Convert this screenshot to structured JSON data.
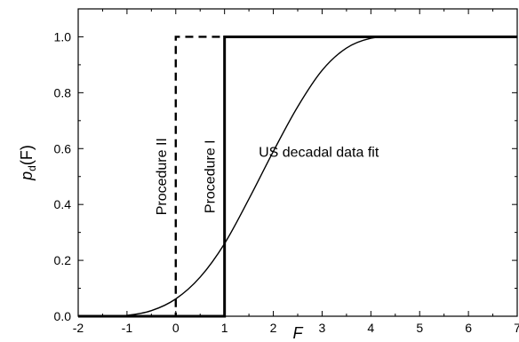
{
  "chart_data": {
    "type": "line",
    "xlabel": "F",
    "ylabel_main": "p",
    "ylabel_sub": "d",
    "ylabel_paren": "(F)",
    "xlim": [
      -2,
      7
    ],
    "ylim": [
      0,
      1.1
    ],
    "x_ticks": [
      -2,
      -1,
      0,
      1,
      2,
      3,
      4,
      5,
      6,
      7
    ],
    "y_ticks": [
      0.0,
      0.2,
      0.4,
      0.6,
      0.8,
      1.0
    ],
    "x_tick_labels": [
      "-2",
      "-1",
      "0",
      "1",
      "2",
      "3",
      "4",
      "5",
      "6",
      "7"
    ],
    "y_tick_labels": [
      "0.0",
      "0.2",
      "0.4",
      "0.6",
      "0.8",
      "1.0"
    ],
    "grid": false,
    "series": [
      {
        "name": "Procedure II",
        "style": "dashed",
        "color": "#000000",
        "x": [
          -2,
          0,
          0,
          7
        ],
        "y": [
          0,
          0,
          1,
          1
        ]
      },
      {
        "name": "Procedure I",
        "style": "solid-thick",
        "color": "#000000",
        "x": [
          -2,
          1,
          1,
          7
        ],
        "y": [
          0,
          0,
          1,
          1
        ]
      },
      {
        "name": "US decadal data fit",
        "style": "solid-thin",
        "color": "#000000",
        "x": [
          -2,
          -1.5,
          -1,
          -0.5,
          0,
          0.5,
          1,
          1.5,
          2,
          2.5,
          3,
          3.5,
          4,
          4.5,
          5,
          6,
          7
        ],
        "y": [
          0,
          0,
          0.003,
          0.02,
          0.062,
          0.14,
          0.26,
          0.42,
          0.59,
          0.75,
          0.88,
          0.96,
          0.995,
          1.0,
          1.0,
          1.0,
          1.0
        ]
      }
    ],
    "annotations": [
      {
        "text": "Procedure II",
        "x": -0.2,
        "y": 0.5,
        "rotate": -90
      },
      {
        "text": "Procedure I",
        "x": 0.8,
        "y": 0.5,
        "rotate": -90
      },
      {
        "text": "US decadal data fit",
        "x": 1.7,
        "y": 0.57,
        "rotate": 0
      }
    ]
  }
}
